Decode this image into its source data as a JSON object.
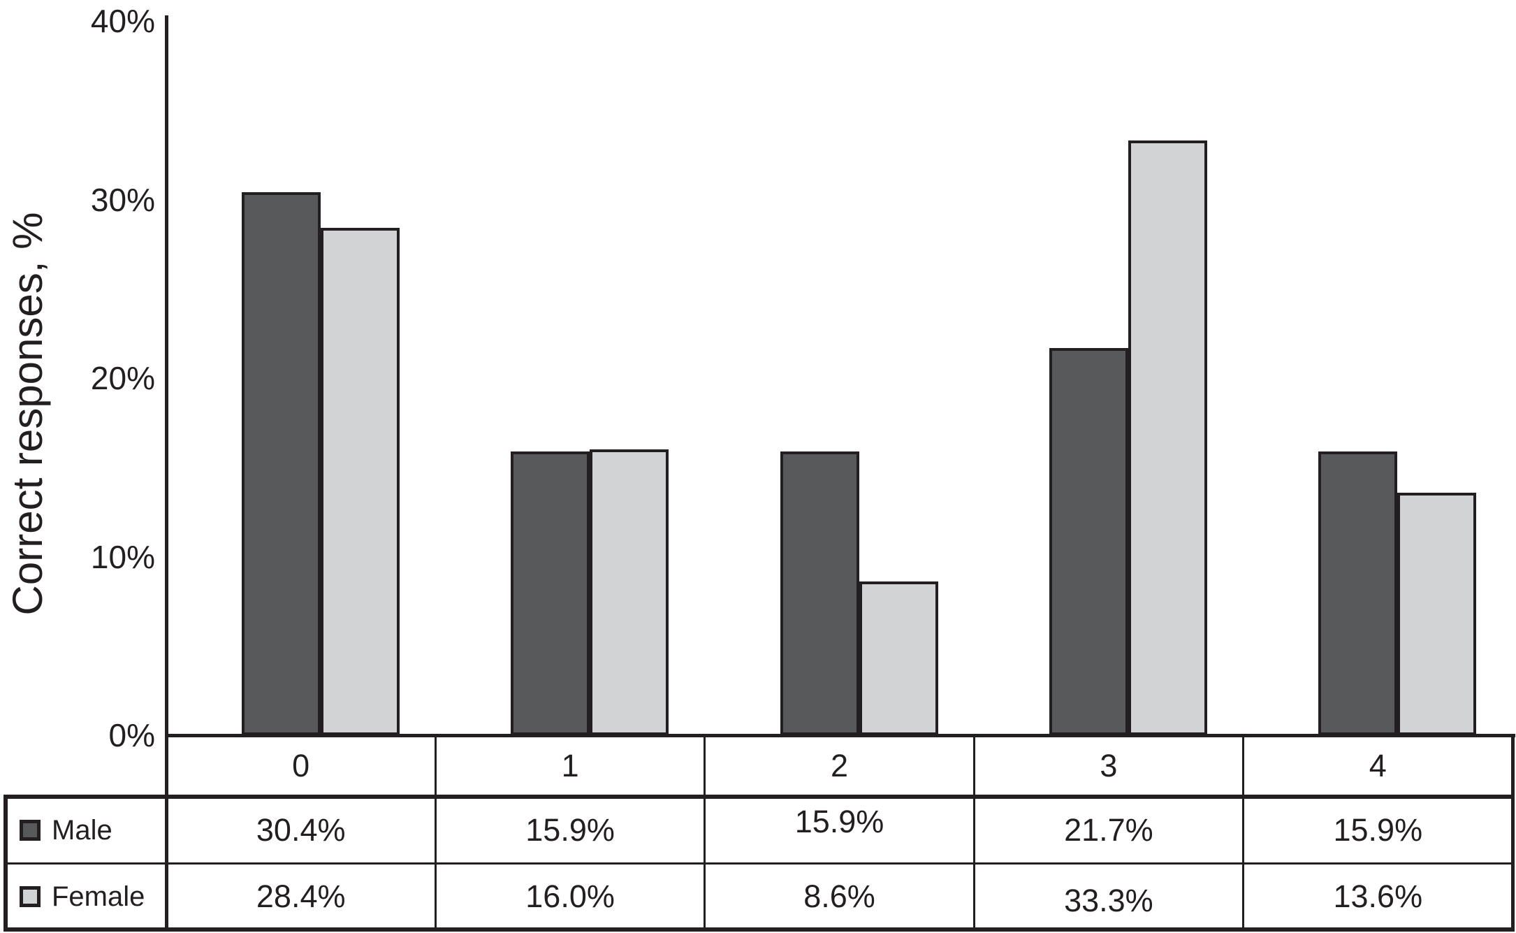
{
  "chart_data": {
    "type": "bar",
    "title": "",
    "xlabel": "",
    "ylabel": "Correct responses, %",
    "categories": [
      "0",
      "1",
      "2",
      "3",
      "4"
    ],
    "series": [
      {
        "name": "Male",
        "color": "#58595b",
        "values": [
          30.4,
          15.9,
          15.9,
          21.7,
          15.9
        ]
      },
      {
        "name": "Female",
        "color": "#d1d3d4",
        "values": [
          28.4,
          16.0,
          8.6,
          33.3,
          13.6
        ]
      }
    ],
    "ylim": [
      0,
      40
    ],
    "yticks": [
      {
        "value": 0,
        "label": "0%"
      },
      {
        "value": 10,
        "label": "10%"
      },
      {
        "value": 20,
        "label": "20%"
      },
      {
        "value": 30,
        "label": "30%"
      },
      {
        "value": 40,
        "label": "40%"
      }
    ],
    "grid": false,
    "legend_position": "table-rows-left",
    "axis_color": "#231f20",
    "data_table": {
      "category_row": [
        "0",
        "1",
        "2",
        "3",
        "4"
      ],
      "rows": [
        {
          "legend": "Male",
          "swatch_color": "#58595b",
          "cells": [
            "30.4%",
            "15.9%",
            "15.9%",
            "21.7%",
            "15.9%"
          ]
        },
        {
          "legend": "Female",
          "swatch_color": "#d1d3d4",
          "cells": [
            "28.4%",
            "16.0%",
            "8.6%",
            "33.3%",
            "13.6%"
          ]
        }
      ]
    }
  }
}
